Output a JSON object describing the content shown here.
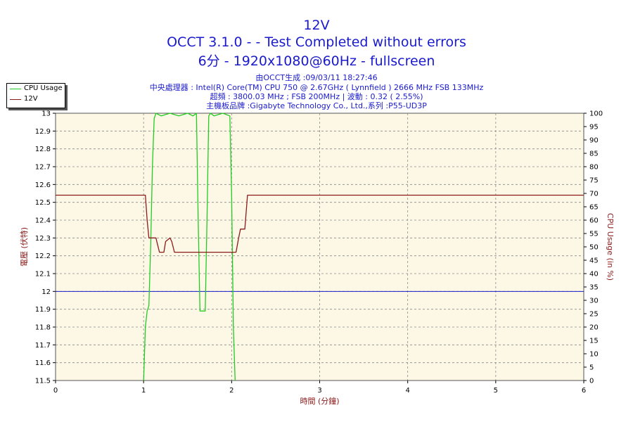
{
  "header": {
    "title": "12V",
    "line2": "OCCT 3.1.0 -  - Test Completed without errors",
    "line3": "6分 - 1920x1080@60Hz - fullscreen",
    "info1": "由OCCT生成 :09/03/11 18:27:46",
    "info2": "中央處理器 : Intel(R) Core(TM) CPU 750 @ 2.67GHz ( Lynnfield ) 2666 MHz FSB 133MHz",
    "info3": "超頻 : 3800.03 MHz ; FSB 200MHz | 波動 : 0.32 ( 2.55%)",
    "info4": "主機板品牌 :Gigabyte Technology Co., Ltd.,系列 :P55-UD3P"
  },
  "colors": {
    "title": "#1a1acc",
    "cpu_usage": "#22cc22",
    "v12": "#8b1a1a",
    "reference": "#1a1acc",
    "plot_bg": "#fdf8e6",
    "axis_label": "#8b1a1a"
  },
  "chart_data": {
    "type": "line",
    "xlabel": "時間 (分鐘)",
    "ylabel": "電壓 (伏特)",
    "ylabel_right": "CPU Usage (in %)",
    "xlim": [
      0,
      6
    ],
    "ylim": [
      11.5,
      13
    ],
    "ylim_right": [
      0,
      100
    ],
    "x_ticks": [
      "0",
      "1",
      "2",
      "3",
      "4",
      "5",
      "6"
    ],
    "y_ticks": [
      "11.5",
      "11.6",
      "11.7",
      "11.8",
      "11.9",
      "12",
      "12.1",
      "12.2",
      "12.3",
      "12.4",
      "12.5",
      "12.6",
      "12.7",
      "12.8",
      "12.9",
      "13"
    ],
    "y_ticks_right": [
      "0",
      "5",
      "10",
      "15",
      "20",
      "25",
      "30",
      "35",
      "40",
      "45",
      "50",
      "55",
      "60",
      "65",
      "70",
      "75",
      "80",
      "85",
      "90",
      "95",
      "100"
    ],
    "grid": true,
    "legend_position": "top-left",
    "reference_line": 12,
    "series": [
      {
        "name": "CPU Usage",
        "axis": "right",
        "x": [
          1.0,
          1.02,
          1.04,
          1.06,
          1.08,
          1.1,
          1.12,
          1.14,
          1.2,
          1.3,
          1.4,
          1.5,
          1.56,
          1.6,
          1.62,
          1.64,
          1.66,
          1.7,
          1.72,
          1.74,
          1.76,
          1.8,
          1.9,
          1.98,
          2.0,
          2.02,
          2.04
        ],
        "values": [
          0,
          20,
          26,
          28,
          50,
          80,
          98,
          100,
          99,
          100,
          99,
          100,
          99,
          100,
          60,
          26,
          26,
          26,
          60,
          99,
          100,
          99,
          100,
          99,
          70,
          20,
          0
        ]
      },
      {
        "name": "12V",
        "axis": "left",
        "x": [
          0,
          1.02,
          1.04,
          1.06,
          1.1,
          1.14,
          1.18,
          1.2,
          1.23,
          1.25,
          1.3,
          1.32,
          1.35,
          1.4,
          1.6,
          1.8,
          2.0,
          2.05,
          2.08,
          2.1,
          2.15,
          2.18,
          2.2,
          6
        ],
        "values": [
          12.54,
          12.54,
          12.4,
          12.3,
          12.3,
          12.3,
          12.22,
          12.22,
          12.22,
          12.28,
          12.3,
          12.28,
          12.22,
          12.22,
          12.22,
          12.22,
          12.22,
          12.22,
          12.3,
          12.35,
          12.35,
          12.54,
          12.54,
          12.54
        ]
      }
    ]
  }
}
